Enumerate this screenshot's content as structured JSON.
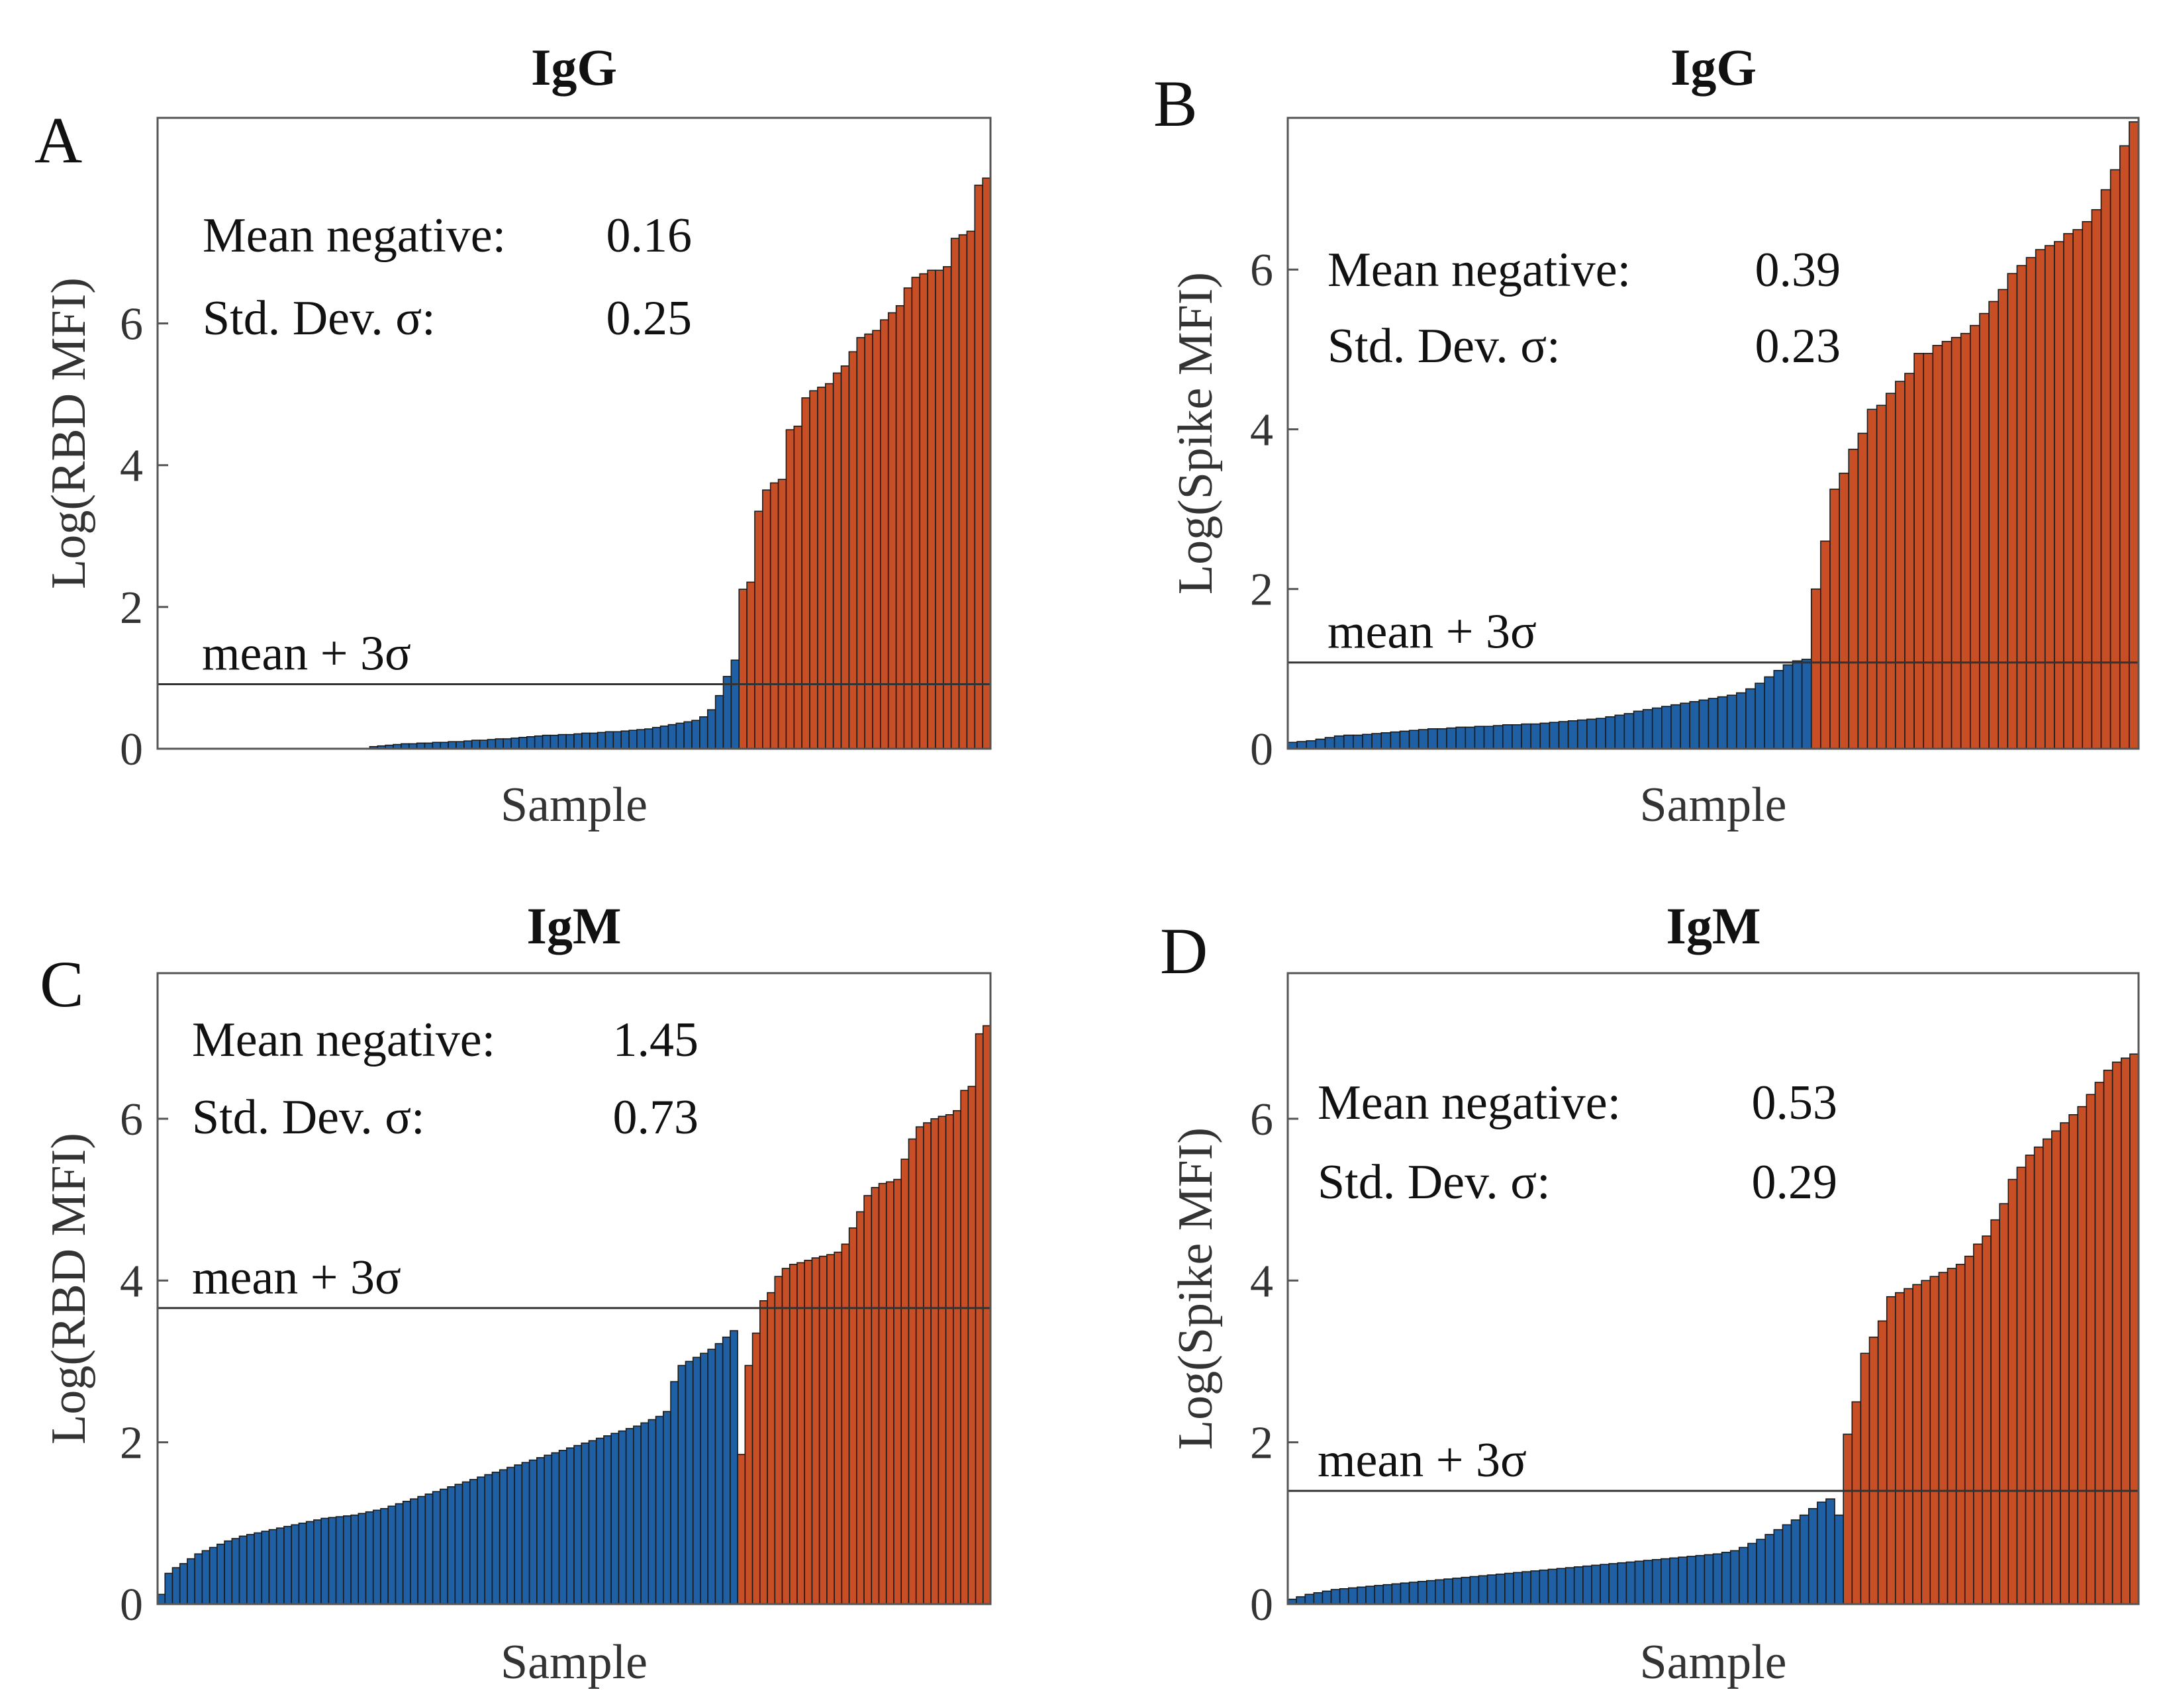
{
  "chart_data": [
    {
      "type": "bar",
      "panel": "A",
      "title": "IgG",
      "xlabel": "Sample",
      "ylabel": "Log(RBD MFI)",
      "ylim": [
        0,
        8.9
      ],
      "yticks": [
        "0",
        "2",
        "4",
        "6"
      ],
      "stats": {
        "mean_label": "Mean negative:",
        "mean_value": "0.16",
        "sd_label": "Std. Dev. σ:",
        "sd_value": "0.25"
      },
      "threshold": {
        "label": "mean + 3σ",
        "value": 0.91
      },
      "series": [
        {
          "name": "negative",
          "color": "#1f5fa3",
          "values": [
            0,
            0,
            0,
            0,
            0,
            0,
            0,
            0,
            0,
            0,
            0,
            0,
            0,
            0,
            0,
            0,
            0,
            0,
            0,
            0,
            0,
            0,
            0,
            0,
            0,
            0,
            0,
            0.03,
            0.04,
            0.05,
            0.06,
            0.07,
            0.07,
            0.08,
            0.08,
            0.09,
            0.09,
            0.1,
            0.1,
            0.11,
            0.12,
            0.12,
            0.13,
            0.14,
            0.14,
            0.15,
            0.16,
            0.17,
            0.18,
            0.19,
            0.19,
            0.2,
            0.2,
            0.21,
            0.22,
            0.22,
            0.23,
            0.24,
            0.24,
            0.25,
            0.26,
            0.27,
            0.28,
            0.3,
            0.32,
            0.34,
            0.36,
            0.38,
            0.4,
            0.45,
            0.55,
            0.75,
            1.02,
            1.25
          ]
        },
        {
          "name": "positive",
          "color": "#c84e25",
          "values": [
            2.25,
            2.35,
            3.35,
            3.65,
            3.75,
            3.8,
            4.5,
            4.55,
            4.95,
            5.05,
            5.1,
            5.15,
            5.3,
            5.4,
            5.6,
            5.8,
            5.85,
            5.9,
            6.05,
            6.15,
            6.25,
            6.5,
            6.65,
            6.7,
            6.75,
            6.75,
            6.8,
            7.2,
            7.25,
            7.3,
            7.95,
            8.05
          ]
        }
      ]
    },
    {
      "type": "bar",
      "panel": "B",
      "title": "IgG",
      "xlabel": "Sample",
      "ylabel": "Log(Spike MFI)",
      "ylim": [
        0,
        7.9
      ],
      "yticks": [
        "0",
        "2",
        "4",
        "6"
      ],
      "stats": {
        "mean_label": "Mean negative:",
        "mean_value": "0.39",
        "sd_label": "Std. Dev. σ:",
        "sd_value": "0.23"
      },
      "threshold": {
        "label": "mean + 3σ",
        "value": 1.08
      },
      "series": [
        {
          "name": "negative",
          "color": "#1f5fa3",
          "values": [
            0.08,
            0.09,
            0.1,
            0.12,
            0.14,
            0.16,
            0.17,
            0.17,
            0.18,
            0.19,
            0.2,
            0.21,
            0.22,
            0.23,
            0.24,
            0.25,
            0.25,
            0.26,
            0.27,
            0.27,
            0.28,
            0.28,
            0.29,
            0.3,
            0.3,
            0.31,
            0.31,
            0.32,
            0.33,
            0.34,
            0.35,
            0.36,
            0.37,
            0.38,
            0.4,
            0.42,
            0.44,
            0.47,
            0.49,
            0.51,
            0.53,
            0.55,
            0.57,
            0.59,
            0.61,
            0.63,
            0.65,
            0.67,
            0.7,
            0.75,
            0.82,
            0.9,
            0.98,
            1.05,
            1.1,
            1.12
          ]
        },
        {
          "name": "positive",
          "color": "#c84e25",
          "values": [
            2.0,
            2.6,
            3.25,
            3.45,
            3.75,
            3.95,
            4.25,
            4.3,
            4.45,
            4.6,
            4.7,
            4.95,
            4.95,
            5.05,
            5.1,
            5.15,
            5.2,
            5.3,
            5.45,
            5.6,
            5.75,
            5.95,
            6.05,
            6.15,
            6.25,
            6.3,
            6.35,
            6.45,
            6.5,
            6.6,
            6.75,
            7.0,
            7.25,
            7.55,
            7.85
          ]
        }
      ]
    },
    {
      "type": "bar",
      "panel": "C",
      "title": "IgM",
      "xlabel": "Sample",
      "ylabel": "Log(RBD MFI)",
      "ylim": [
        0,
        7.8
      ],
      "yticks": [
        "0",
        "2",
        "4",
        "6"
      ],
      "stats": {
        "mean_label": "Mean negative:",
        "mean_value": "1.45",
        "sd_label": "Std. Dev. σ:",
        "sd_value": "0.73"
      },
      "threshold": {
        "label": "mean + 3σ",
        "value": 3.66
      },
      "series": [
        {
          "name": "negative",
          "color": "#1f5fa3",
          "values": [
            0.12,
            0.38,
            0.45,
            0.5,
            0.56,
            0.62,
            0.66,
            0.7,
            0.74,
            0.78,
            0.81,
            0.84,
            0.86,
            0.88,
            0.9,
            0.92,
            0.94,
            0.96,
            0.98,
            1.0,
            1.02,
            1.04,
            1.06,
            1.07,
            1.08,
            1.09,
            1.1,
            1.12,
            1.14,
            1.16,
            1.18,
            1.21,
            1.24,
            1.27,
            1.3,
            1.33,
            1.36,
            1.39,
            1.42,
            1.45,
            1.48,
            1.51,
            1.54,
            1.57,
            1.6,
            1.63,
            1.66,
            1.69,
            1.72,
            1.75,
            1.78,
            1.81,
            1.84,
            1.87,
            1.9,
            1.93,
            1.96,
            1.99,
            2.02,
            2.05,
            2.08,
            2.11,
            2.14,
            2.17,
            2.2,
            2.24,
            2.28,
            2.32,
            2.38,
            2.75,
            2.95,
            3.0,
            3.05,
            3.1,
            3.15,
            3.22,
            3.3,
            3.38
          ]
        },
        {
          "name": "positive",
          "color": "#c84e25",
          "values": [
            1.85,
            2.95,
            3.35,
            3.75,
            3.85,
            4.05,
            4.15,
            4.2,
            4.22,
            4.25,
            4.28,
            4.3,
            4.32,
            4.35,
            4.45,
            4.65,
            4.85,
            5.05,
            5.15,
            5.2,
            5.22,
            5.25,
            5.5,
            5.75,
            5.9,
            5.95,
            6.0,
            6.03,
            6.05,
            6.1,
            6.35,
            6.4,
            7.05,
            7.15
          ]
        }
      ]
    },
    {
      "type": "bar",
      "panel": "D",
      "title": "IgM",
      "xlabel": "Sample",
      "ylabel": "Log(Spike MFI)",
      "ylim": [
        0,
        7.8
      ],
      "yticks": [
        "0",
        "2",
        "4",
        "6"
      ],
      "stats": {
        "mean_label": "Mean negative:",
        "mean_value": "0.53",
        "sd_label": "Std. Dev. σ:",
        "sd_value": "0.29"
      },
      "threshold": {
        "label": "mean + 3σ",
        "value": 1.4
      },
      "series": [
        {
          "name": "negative",
          "color": "#1f5fa3",
          "values": [
            0.06,
            0.09,
            0.12,
            0.14,
            0.16,
            0.18,
            0.19,
            0.2,
            0.21,
            0.22,
            0.23,
            0.24,
            0.25,
            0.26,
            0.27,
            0.28,
            0.29,
            0.3,
            0.31,
            0.32,
            0.33,
            0.34,
            0.35,
            0.36,
            0.37,
            0.38,
            0.39,
            0.4,
            0.41,
            0.42,
            0.43,
            0.44,
            0.45,
            0.46,
            0.47,
            0.48,
            0.49,
            0.5,
            0.51,
            0.52,
            0.53,
            0.54,
            0.55,
            0.56,
            0.57,
            0.58,
            0.59,
            0.6,
            0.61,
            0.62,
            0.64,
            0.66,
            0.7,
            0.75,
            0.8,
            0.86,
            0.92,
            0.98,
            1.04,
            1.1,
            1.18,
            1.26,
            1.3,
            1.1
          ]
        },
        {
          "name": "positive",
          "color": "#c84e25",
          "values": [
            2.1,
            2.5,
            3.1,
            3.3,
            3.5,
            3.8,
            3.85,
            3.9,
            3.95,
            4.0,
            4.05,
            4.1,
            4.15,
            4.2,
            4.3,
            4.45,
            4.55,
            4.75,
            4.95,
            5.25,
            5.4,
            5.55,
            5.65,
            5.75,
            5.85,
            5.95,
            6.05,
            6.15,
            6.3,
            6.45,
            6.6,
            6.7,
            6.75,
            6.8
          ]
        }
      ]
    }
  ]
}
